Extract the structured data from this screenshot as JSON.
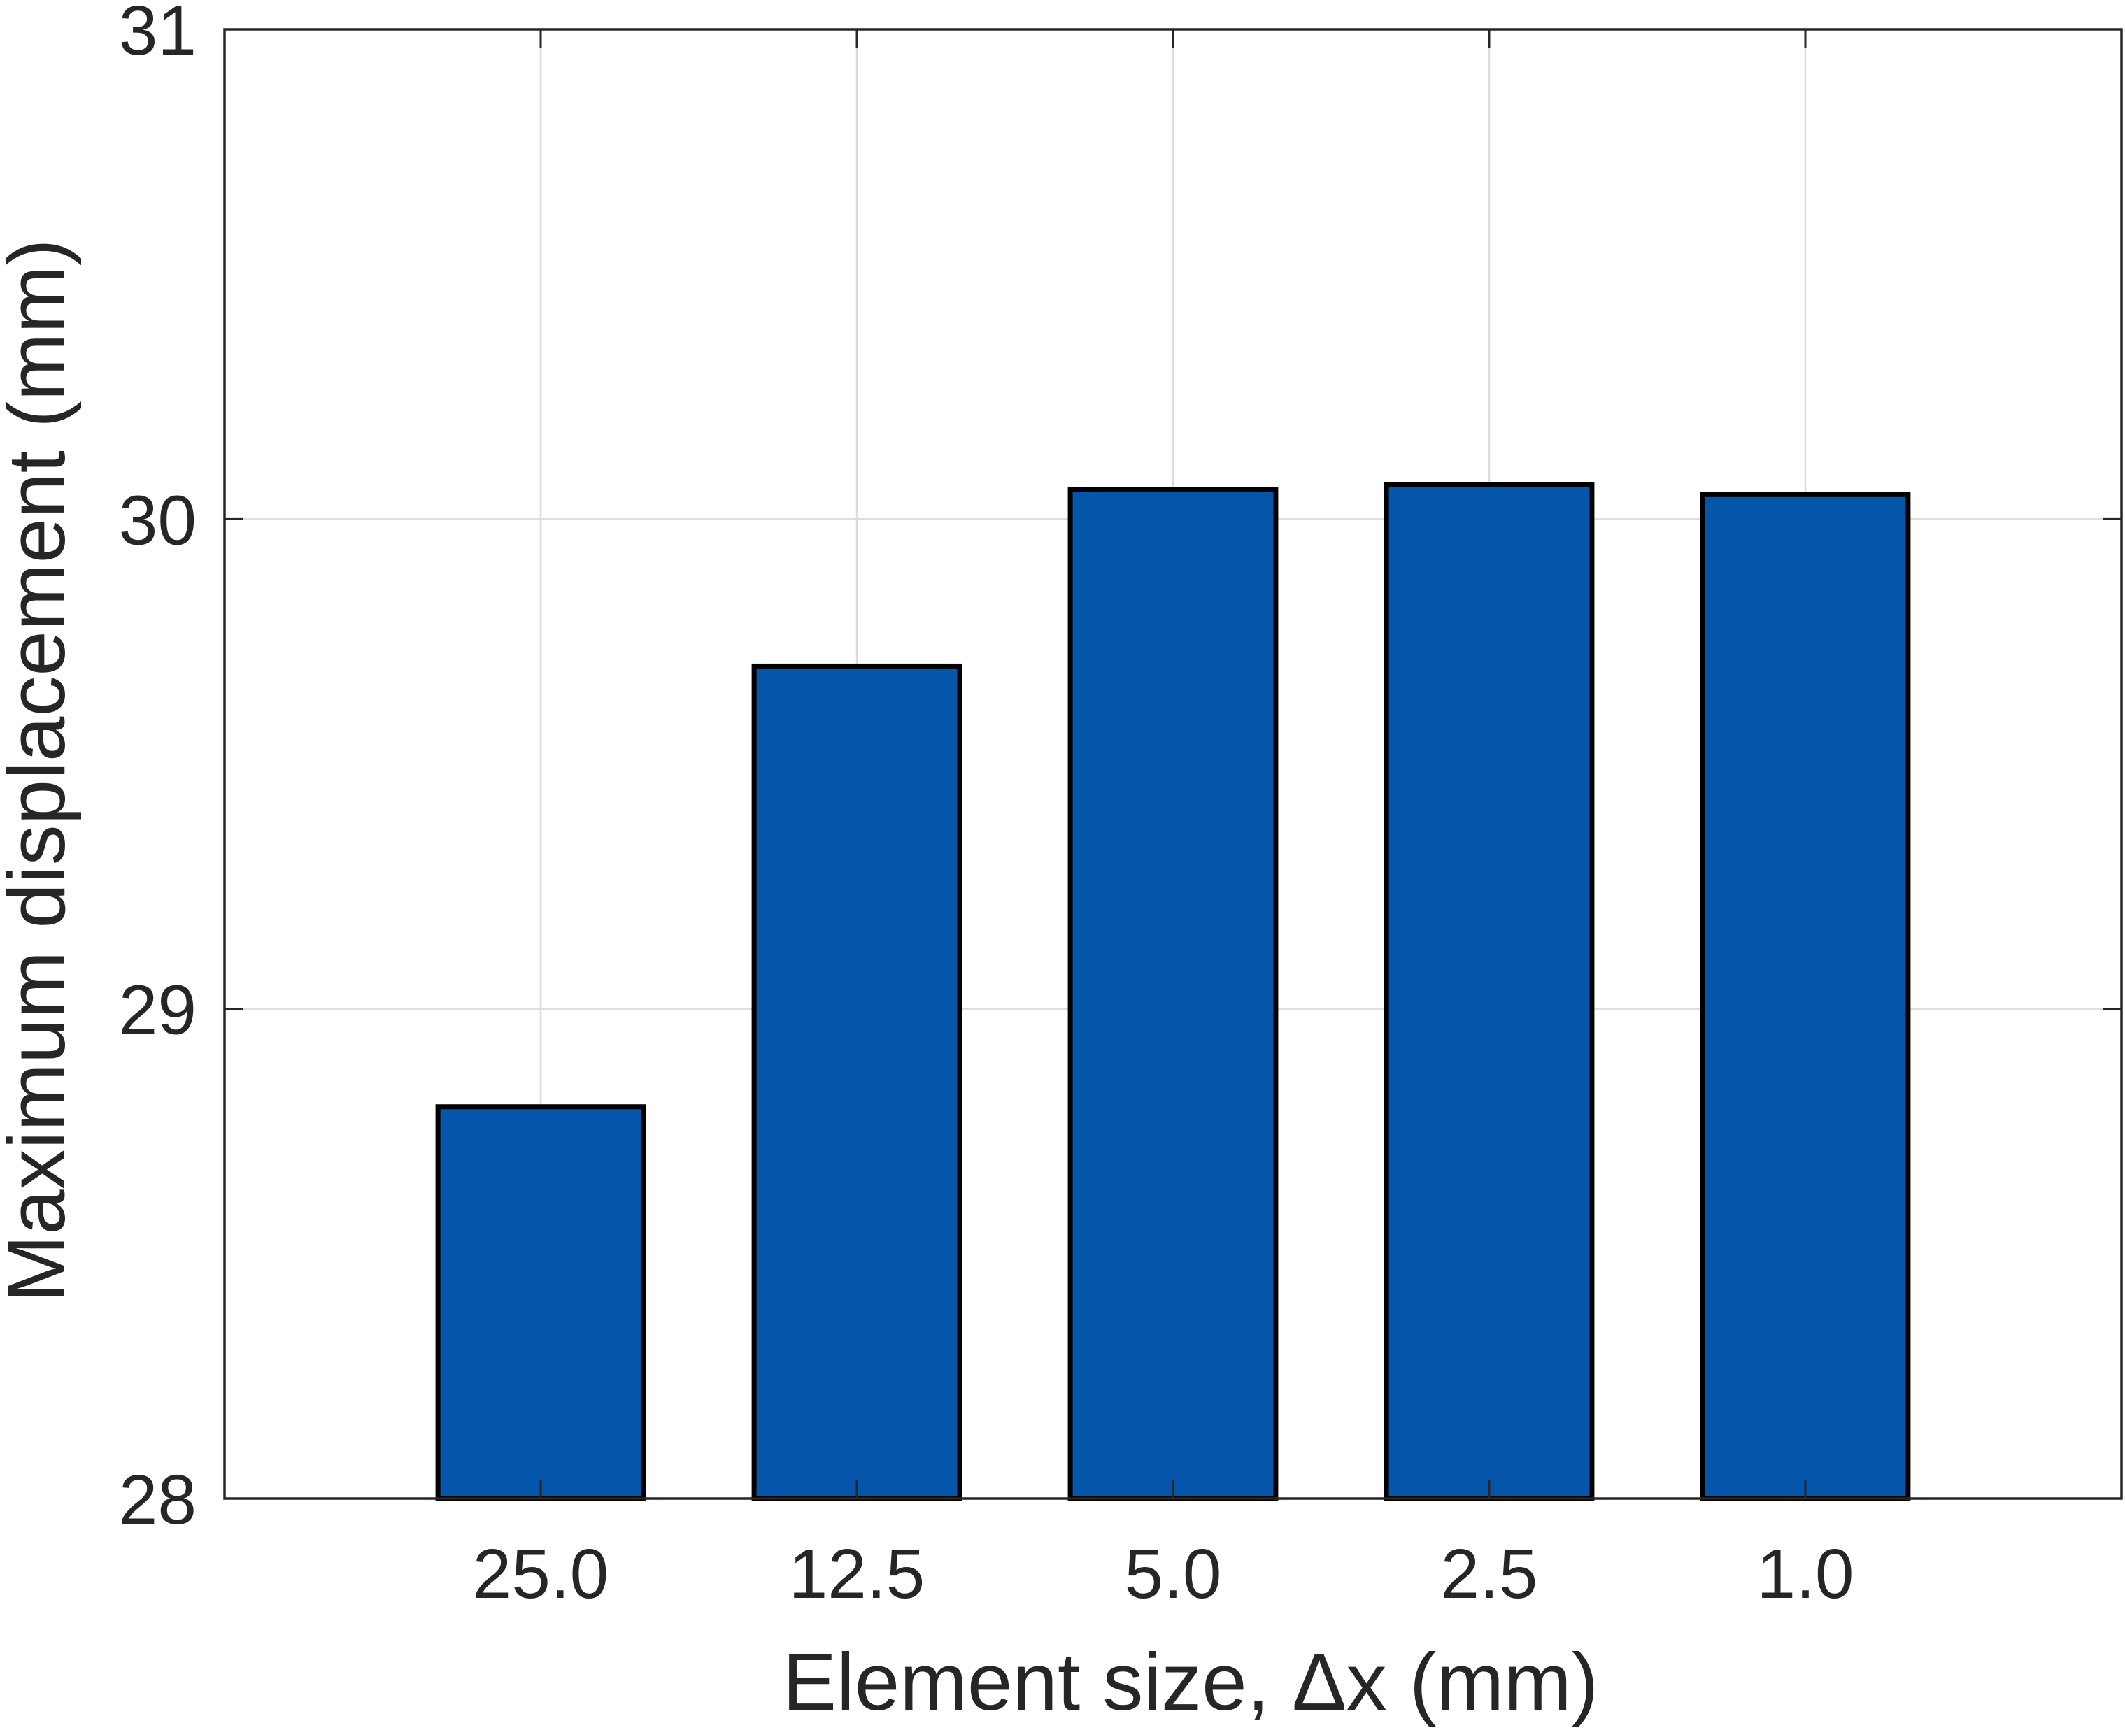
{
  "chart_data": {
    "type": "bar",
    "categories": [
      "25.0",
      "12.5",
      "5.0",
      "2.5",
      "1.0"
    ],
    "values": [
      28.8,
      29.7,
      30.06,
      30.07,
      30.05
    ],
    "xlabel": "Element size, Δx (mm)",
    "ylabel": "Maximum displacement (mm)",
    "ylim": [
      28,
      31
    ],
    "yticks": [
      "28",
      "29",
      "30",
      "31"
    ],
    "grid": true,
    "legend": "none",
    "bar_color": "#0556aa",
    "bar_edge_color": "#000000",
    "axis_color": "#262626"
  }
}
